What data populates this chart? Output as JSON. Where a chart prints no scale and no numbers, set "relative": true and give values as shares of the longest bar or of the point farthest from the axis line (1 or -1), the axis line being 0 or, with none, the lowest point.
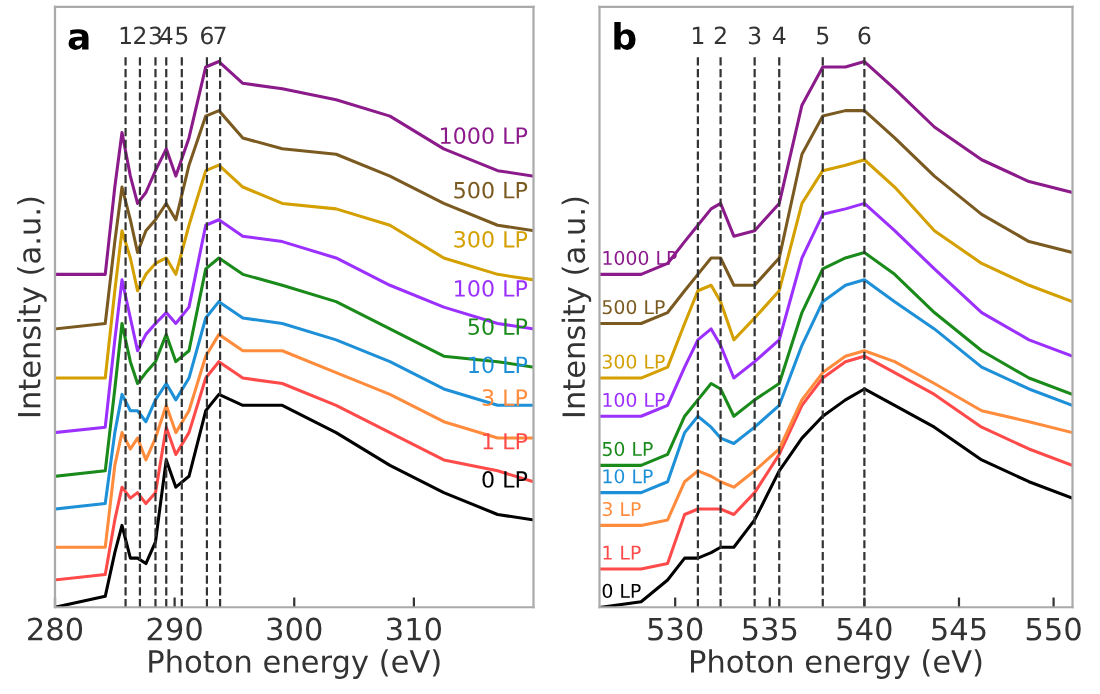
{
  "chart_data": [
    {
      "type": "line",
      "title": "a",
      "xlabel": "Photon energy (eV)",
      "ylabel": "Intensity (a.u.)",
      "relative": true,
      "tick_labels": "x",
      "grid": false,
      "legend": false,
      "xlim": [
        280,
        320
      ],
      "xticks": [
        280,
        290,
        300,
        310
      ],
      "x": [
        280,
        284.2,
        285.0,
        285.6,
        286.3,
        286.9,
        287.6,
        288.4,
        289.3,
        290.1,
        291.2,
        292.6,
        293.7,
        295.7,
        299.0,
        303.5,
        308.0,
        312.5,
        317.0,
        320.0
      ],
      "series": [
        {
          "name": "0 LP",
          "color": "#000000",
          "values": [
            0.0,
            0.02,
            0.1,
            0.15,
            0.09,
            0.09,
            0.08,
            0.12,
            0.27,
            0.22,
            0.24,
            0.36,
            0.39,
            0.37,
            0.37,
            0.32,
            0.26,
            0.21,
            0.17,
            0.16
          ]
        },
        {
          "name": "1 LP",
          "color": "#ff4a4a",
          "values": [
            0.05,
            0.06,
            0.16,
            0.22,
            0.2,
            0.21,
            0.19,
            0.21,
            0.33,
            0.28,
            0.32,
            0.42,
            0.45,
            0.42,
            0.41,
            0.37,
            0.32,
            0.27,
            0.25,
            0.23
          ]
        },
        {
          "name": "3 LP",
          "color": "#ff8c3c",
          "values": [
            0.11,
            0.11,
            0.26,
            0.32,
            0.29,
            0.31,
            0.27,
            0.31,
            0.37,
            0.32,
            0.36,
            0.46,
            0.5,
            0.47,
            0.47,
            0.43,
            0.39,
            0.34,
            0.31,
            0.31
          ]
        },
        {
          "name": "10 LP",
          "color": "#1e90d8",
          "values": [
            0.18,
            0.19,
            0.32,
            0.39,
            0.36,
            0.36,
            0.34,
            0.38,
            0.41,
            0.38,
            0.42,
            0.53,
            0.56,
            0.53,
            0.52,
            0.49,
            0.45,
            0.4,
            0.37,
            0.37
          ]
        },
        {
          "name": "50 LP",
          "color": "#1a8a1a",
          "values": [
            0.24,
            0.25,
            0.4,
            0.52,
            0.45,
            0.41,
            0.43,
            0.45,
            0.5,
            0.45,
            0.47,
            0.62,
            0.64,
            0.61,
            0.59,
            0.56,
            0.51,
            0.46,
            0.45,
            0.44
          ]
        },
        {
          "name": "100 LP",
          "color": "#9b30ff",
          "values": [
            0.32,
            0.33,
            0.49,
            0.6,
            0.53,
            0.47,
            0.5,
            0.52,
            0.54,
            0.52,
            0.55,
            0.7,
            0.71,
            0.68,
            0.67,
            0.64,
            0.59,
            0.55,
            0.52,
            0.51
          ]
        },
        {
          "name": "300 LP",
          "color": "#d4a000",
          "values": [
            0.42,
            0.42,
            0.58,
            0.69,
            0.64,
            0.58,
            0.61,
            0.63,
            0.64,
            0.61,
            0.7,
            0.8,
            0.81,
            0.77,
            0.74,
            0.73,
            0.7,
            0.64,
            0.61,
            0.6
          ]
        },
        {
          "name": "500 LP",
          "color": "#7a5a20",
          "values": [
            0.51,
            0.52,
            0.67,
            0.77,
            0.71,
            0.65,
            0.69,
            0.71,
            0.74,
            0.71,
            0.81,
            0.9,
            0.91,
            0.86,
            0.84,
            0.83,
            0.79,
            0.74,
            0.7,
            0.69
          ]
        },
        {
          "name": "1000 LP",
          "color": "#8b1a8b",
          "values": [
            0.61,
            0.61,
            0.77,
            0.87,
            0.79,
            0.74,
            0.76,
            0.8,
            0.84,
            0.79,
            0.86,
            0.99,
            1.0,
            0.96,
            0.95,
            0.93,
            0.9,
            0.84,
            0.8,
            0.79
          ]
        }
      ],
      "ref_lines": [
        {
          "axis": "x",
          "value": 285.9,
          "line_style": "dashed",
          "color": "#333333"
        },
        {
          "axis": "x",
          "value": 287.1,
          "line_style": "dashed",
          "color": "#333333"
        },
        {
          "axis": "x",
          "value": 288.4,
          "line_style": "dashed",
          "color": "#333333"
        },
        {
          "axis": "x",
          "value": 289.3,
          "line_style": "dashed",
          "color": "#333333"
        },
        {
          "axis": "x",
          "value": 290.6,
          "line_style": "dashed",
          "color": "#333333"
        },
        {
          "axis": "x",
          "value": 292.7,
          "line_style": "dashed",
          "color": "#333333"
        },
        {
          "axis": "x",
          "value": 293.8,
          "line_style": "dashed",
          "color": "#333333"
        }
      ],
      "annotations": [
        "1",
        "2",
        "3",
        "4",
        "5",
        "6",
        "7"
      ]
    },
    {
      "type": "line",
      "title": "b",
      "xlabel": "Photon energy (eV)",
      "ylabel": "Intensity (a.u.)",
      "relative": true,
      "tick_labels": "x",
      "grid": false,
      "legend": false,
      "xlim": [
        526,
        551
      ],
      "xticks": [
        530,
        535,
        540,
        545,
        550
      ],
      "x": [
        526.1,
        528.2,
        529.6,
        530.5,
        531.2,
        531.9,
        532.4,
        533.1,
        534.2,
        535.5,
        536.7,
        537.8,
        539.0,
        540.0,
        541.6,
        543.7,
        546.2,
        548.7,
        551.0
      ],
      "series": [
        {
          "name": "0 LP",
          "color": "#000000",
          "values": [
            0.0,
            0.01,
            0.05,
            0.09,
            0.09,
            0.1,
            0.11,
            0.11,
            0.16,
            0.25,
            0.31,
            0.35,
            0.38,
            0.4,
            0.37,
            0.33,
            0.27,
            0.23,
            0.2
          ]
        },
        {
          "name": "1 LP",
          "color": "#ff4a4a",
          "values": [
            0.07,
            0.07,
            0.08,
            0.17,
            0.18,
            0.18,
            0.18,
            0.17,
            0.21,
            0.28,
            0.37,
            0.42,
            0.45,
            0.46,
            0.43,
            0.39,
            0.33,
            0.29,
            0.26
          ]
        },
        {
          "name": "3 LP",
          "color": "#ff8c3c",
          "values": [
            0.15,
            0.15,
            0.16,
            0.23,
            0.25,
            0.24,
            0.23,
            0.22,
            0.25,
            0.29,
            0.38,
            0.43,
            0.46,
            0.47,
            0.45,
            0.41,
            0.36,
            0.34,
            0.32
          ]
        },
        {
          "name": "10 LP",
          "color": "#1e90d8",
          "values": [
            0.21,
            0.21,
            0.23,
            0.32,
            0.35,
            0.33,
            0.31,
            0.3,
            0.33,
            0.37,
            0.48,
            0.56,
            0.59,
            0.6,
            0.56,
            0.51,
            0.44,
            0.4,
            0.37
          ]
        },
        {
          "name": "50 LP",
          "color": "#1a8a1a",
          "values": [
            0.26,
            0.26,
            0.28,
            0.35,
            0.38,
            0.41,
            0.4,
            0.35,
            0.38,
            0.41,
            0.54,
            0.62,
            0.64,
            0.65,
            0.61,
            0.54,
            0.47,
            0.42,
            0.39
          ]
        },
        {
          "name": "100 LP",
          "color": "#9b30ff",
          "values": [
            0.35,
            0.35,
            0.37,
            0.44,
            0.49,
            0.51,
            0.48,
            0.42,
            0.45,
            0.49,
            0.64,
            0.72,
            0.73,
            0.74,
            0.69,
            0.62,
            0.54,
            0.49,
            0.46
          ]
        },
        {
          "name": "300 LP",
          "color": "#d4a000",
          "values": [
            0.42,
            0.42,
            0.44,
            0.52,
            0.58,
            0.59,
            0.56,
            0.49,
            0.53,
            0.58,
            0.74,
            0.8,
            0.81,
            0.82,
            0.77,
            0.69,
            0.63,
            0.59,
            0.56
          ]
        },
        {
          "name": "500 LP",
          "color": "#7a5a20",
          "values": [
            0.52,
            0.52,
            0.54,
            0.58,
            0.61,
            0.64,
            0.64,
            0.59,
            0.59,
            0.64,
            0.83,
            0.9,
            0.91,
            0.91,
            0.86,
            0.79,
            0.72,
            0.67,
            0.65
          ]
        },
        {
          "name": "1000 LP",
          "color": "#8b1a8b",
          "values": [
            0.61,
            0.61,
            0.63,
            0.67,
            0.7,
            0.73,
            0.74,
            0.68,
            0.69,
            0.74,
            0.92,
            0.99,
            0.99,
            1.0,
            0.95,
            0.88,
            0.82,
            0.78,
            0.76
          ]
        }
      ],
      "ref_lines": [
        {
          "axis": "x",
          "value": 531.2,
          "line_style": "dashed",
          "color": "#333333"
        },
        {
          "axis": "x",
          "value": 532.4,
          "line_style": "dashed",
          "color": "#333333"
        },
        {
          "axis": "x",
          "value": 534.2,
          "line_style": "dashed",
          "color": "#333333"
        },
        {
          "axis": "x",
          "value": 535.5,
          "line_style": "dashed",
          "color": "#333333"
        },
        {
          "axis": "x",
          "value": 537.8,
          "line_style": "dashed",
          "color": "#333333"
        },
        {
          "axis": "x",
          "value": 540.0,
          "line_style": "dashed",
          "color": "#333333"
        }
      ],
      "annotations": [
        "1",
        "2",
        "3",
        "4",
        "5",
        "6"
      ]
    }
  ]
}
